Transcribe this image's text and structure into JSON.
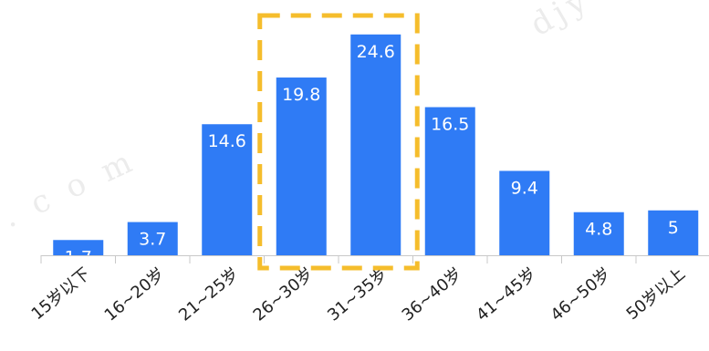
{
  "chart_data": {
    "type": "bar",
    "categories": [
      "15岁以下",
      "16~20岁",
      "21~25岁",
      "26~30岁",
      "31~35岁",
      "36~40岁",
      "41~45岁",
      "46~50岁",
      "50岁以上"
    ],
    "values": [
      1.7,
      3.7,
      14.6,
      19.8,
      24.6,
      16.5,
      9.4,
      4.8,
      5
    ],
    "data_labels": [
      "1.7",
      "3.7",
      "14.6",
      "19.8",
      "24.6",
      "16.5",
      "9.4",
      "4.8",
      "5"
    ],
    "title": "",
    "xlabel": "",
    "ylabel": "",
    "ylim": [
      0,
      26
    ],
    "grid": false,
    "bar_color": "#2f7bf5",
    "label_color": "#ffffff",
    "highlight": {
      "categories": [
        "26~30岁",
        "31~35岁"
      ],
      "color": "#f5bd2c",
      "style": "dashed"
    }
  },
  "watermark": {
    "text_top": "djy",
    "text_left": ". c o m"
  }
}
